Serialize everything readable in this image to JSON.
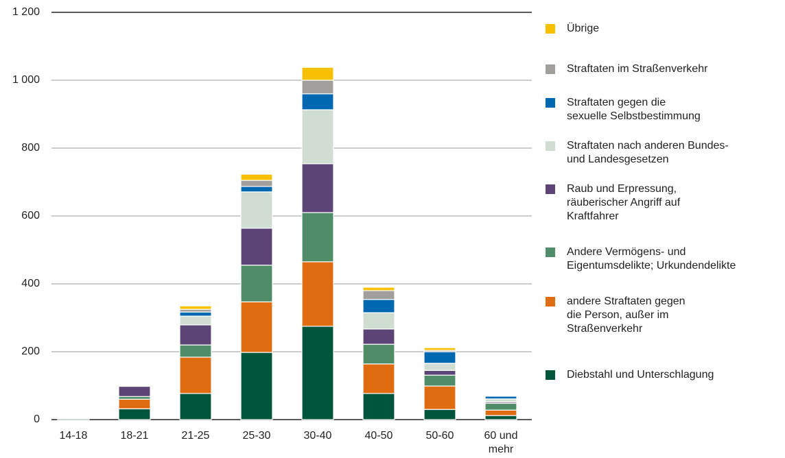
{
  "chart_data": {
    "type": "stacked_bar",
    "categories": [
      "14-18",
      "18-21",
      "21-25",
      "25-30",
      "30-40",
      "40-50",
      "50-60",
      "60 und\nmehr"
    ],
    "series": [
      {
        "name": "Diebstahl und Unterschlagung",
        "color": "#00553a",
        "values": [
          3,
          32,
          77,
          198,
          275,
          77,
          30,
          12
        ]
      },
      {
        "name": "andere Straftaten gegen\ndie Person, außer im\nStraßenverkehr",
        "color": "#e06c12",
        "values": [
          2,
          28,
          107,
          149,
          190,
          87,
          69,
          16
        ]
      },
      {
        "name": "Andere Vermögens- und\nEigentumsdelikte; Urkundendelikte",
        "color": "#4f8c68",
        "values": [
          1,
          8,
          36,
          108,
          145,
          58,
          32,
          20
        ]
      },
      {
        "name": "Raub und Erpressung,\nräuberischer Angriff auf\nKraftfahrer",
        "color": "#5c4477",
        "values": [
          2,
          30,
          59,
          109,
          144,
          45,
          14,
          4
        ]
      },
      {
        "name": "Straftaten nach anderen Bundes-\nund Landesgesetzen",
        "color": "#d0ddd3",
        "values": [
          1,
          1,
          26,
          107,
          159,
          48,
          21,
          9
        ]
      },
      {
        "name": "Straftaten gegen die\nsexuelle Selbstbestimmung",
        "color": "#0067b1",
        "values": [
          0,
          0,
          12,
          16,
          47,
          39,
          34,
          8
        ]
      },
      {
        "name": "Straftaten im Straßenverkehr",
        "color": "#a09f9b",
        "values": [
          0,
          0,
          8,
          18,
          40,
          26,
          4,
          2
        ]
      },
      {
        "name": "Übrige",
        "color": "#f7c000",
        "values": [
          0,
          0,
          10,
          18,
          38,
          10,
          8,
          0
        ]
      }
    ],
    "ylim": [
      0,
      1200
    ],
    "yticks": [
      0,
      200,
      400,
      600,
      800,
      {
        "value": 1000,
        "label": "1 000"
      },
      {
        "value": 1200,
        "label": "1 200"
      }
    ],
    "grid": true
  }
}
